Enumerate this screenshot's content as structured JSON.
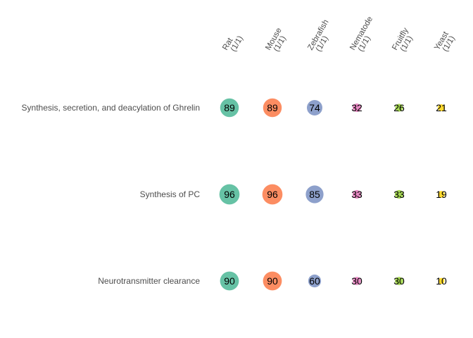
{
  "chart_data": {
    "type": "scatter",
    "title": "",
    "xlabel": "",
    "ylabel": "",
    "columns": [
      {
        "name": "Rat",
        "sub": "(1/1)",
        "color": "#66c2a5"
      },
      {
        "name": "Mouse",
        "sub": "(1/1)",
        "color": "#fc8d62"
      },
      {
        "name": "Zebrafish",
        "sub": "(1/1)",
        "color": "#8da0cb"
      },
      {
        "name": "Nematode",
        "sub": "(1/1)",
        "color": "#e78ac3"
      },
      {
        "name": "Fruitfly",
        "sub": "(1/1)",
        "color": "#a6d854"
      },
      {
        "name": "Yeast",
        "sub": "(1/1)",
        "color": "#ffd92f"
      }
    ],
    "rows": [
      {
        "label": "Synthesis, secretion, and deacylation of Ghrelin",
        "values": [
          89,
          89,
          74,
          32,
          26,
          21
        ]
      },
      {
        "label": "Synthesis of PC",
        "values": [
          96,
          96,
          85,
          33,
          33,
          19
        ]
      },
      {
        "label": "Neurotransmitter clearance",
        "values": [
          90,
          90,
          60,
          30,
          30,
          10
        ]
      }
    ],
    "size_range": [
      10,
      100
    ],
    "grid": false,
    "legend": "none"
  }
}
